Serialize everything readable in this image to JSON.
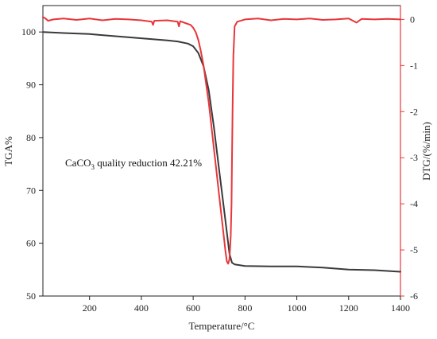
{
  "chart_data": {
    "type": "line",
    "xlabel": "Temperature/°C",
    "ylabel": "TGA%",
    "ylabel_right": "DTG/(%/min)",
    "xlim": [
      20,
      1400
    ],
    "ylim": [
      50,
      105
    ],
    "ylim_right": [
      -6,
      0.3
    ],
    "x_ticks": [
      200,
      400,
      600,
      800,
      1000,
      1200,
      1400
    ],
    "y_ticks": [
      50,
      60,
      70,
      80,
      90,
      100
    ],
    "y_ticks_right": [
      0,
      -1,
      -2,
      -3,
      -4,
      -5,
      -6
    ],
    "annotation": {
      "prefix": "CaCO",
      "subscript": "3",
      "suffix": " quality reduction  42.21%"
    },
    "series": [
      {
        "axis": "left",
        "color": "#3a3a3a",
        "x": [
          20,
          100,
          200,
          300,
          400,
          500,
          540,
          580,
          600,
          620,
          640,
          660,
          680,
          700,
          720,
          740,
          750,
          760,
          800,
          900,
          1000,
          1100,
          1200,
          1300,
          1400
        ],
        "y": [
          100.0,
          99.8,
          99.6,
          99.2,
          98.8,
          98.4,
          98.2,
          97.8,
          97.3,
          96.0,
          93.5,
          89.0,
          82.0,
          74.0,
          66.0,
          58.0,
          56.3,
          56.0,
          55.7,
          55.6,
          55.6,
          55.4,
          55.0,
          54.9,
          54.6
        ]
      },
      {
        "axis": "right",
        "color": "#e8363a",
        "x": [
          20,
          30,
          40,
          60,
          100,
          150,
          200,
          250,
          300,
          350,
          400,
          440,
          445,
          450,
          500,
          540,
          545,
          550,
          570,
          590,
          600,
          610,
          620,
          630,
          640,
          650,
          660,
          670,
          680,
          690,
          700,
          710,
          720,
          725,
          730,
          735,
          740,
          745,
          748,
          750,
          752,
          755,
          760,
          770,
          800,
          850,
          900,
          950,
          1000,
          1050,
          1100,
          1150,
          1200,
          1230,
          1250,
          1300,
          1350,
          1400
        ],
        "y": [
          0.05,
          0.02,
          -0.03,
          0.0,
          0.02,
          -0.01,
          0.02,
          -0.02,
          0.01,
          0.0,
          -0.02,
          -0.05,
          -0.12,
          -0.03,
          -0.02,
          -0.05,
          -0.15,
          -0.04,
          -0.08,
          -0.12,
          -0.18,
          -0.28,
          -0.45,
          -0.7,
          -1.0,
          -1.4,
          -1.8,
          -2.3,
          -2.8,
          -3.3,
          -3.8,
          -4.3,
          -4.8,
          -5.05,
          -5.25,
          -5.3,
          -5.2,
          -4.7,
          -4.0,
          -3.0,
          -2.0,
          -0.8,
          -0.15,
          -0.05,
          0.0,
          0.02,
          -0.02,
          0.01,
          0.0,
          0.02,
          -0.01,
          0.0,
          0.02,
          -0.07,
          0.01,
          0.0,
          0.01,
          0.0
        ]
      }
    ]
  }
}
